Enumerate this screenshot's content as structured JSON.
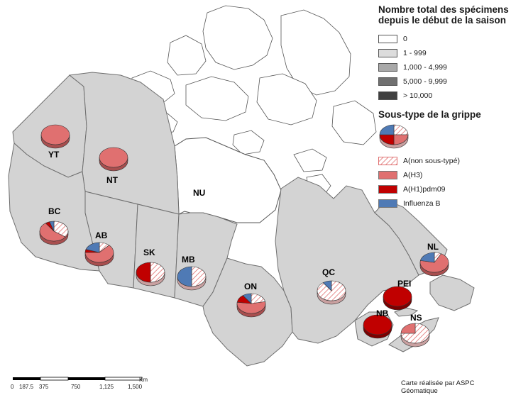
{
  "colors": {
    "land": "#d3d3d3",
    "nunavut": "#ffffff",
    "border": "#6e6e6e",
    "ah3": "#e07070",
    "ah1": "#c00000",
    "inflb": "#4f7ab5",
    "hatch": "#e07070"
  },
  "legend": {
    "total_title_1": "Nombre total des spécimens",
    "total_title_2": "depuis le début de la saison",
    "total_classes": [
      {
        "label": "0",
        "color": "#ffffff"
      },
      {
        "label": "1 - 999",
        "color": "#dcdcdc"
      },
      {
        "label": "1,000 - 4,999",
        "color": "#a8a8a8"
      },
      {
        "label": "5,000 - 9,999",
        "color": "#707070"
      },
      {
        "label": "> 10,000",
        "color": "#404040"
      }
    ],
    "subtype_title": "Sous-type de la grippe",
    "subtypes": [
      {
        "key": "a_nonsub",
        "label": "A(non sous-typé)"
      },
      {
        "key": "ah3",
        "label": "A(H3)"
      },
      {
        "key": "ah1",
        "label": "A(H1)pdm09"
      },
      {
        "key": "inflb",
        "label": "Influenza B"
      }
    ]
  },
  "regions": [
    {
      "code": "YT",
      "a_nonsub": 0,
      "ah3": 100,
      "ah1": 0,
      "inflb": 0
    },
    {
      "code": "NT",
      "a_nonsub": 0,
      "ah3": 100,
      "ah1": 0,
      "inflb": 0
    },
    {
      "code": "NU",
      "a_nonsub": 0,
      "ah3": 0,
      "ah1": 0,
      "inflb": 0
    },
    {
      "code": "BC",
      "a_nonsub": 35,
      "ah3": 55,
      "ah1": 5,
      "inflb": 5
    },
    {
      "code": "AB",
      "a_nonsub": 12,
      "ah3": 63,
      "ah1": 5,
      "inflb": 20
    },
    {
      "code": "SK",
      "a_nonsub": 50,
      "ah3": 0,
      "ah1": 50,
      "inflb": 0
    },
    {
      "code": "MB",
      "a_nonsub": 50,
      "ah3": 0,
      "ah1": 0,
      "inflb": 50
    },
    {
      "code": "ON",
      "a_nonsub": 22,
      "ah3": 55,
      "ah1": 13,
      "inflb": 10
    },
    {
      "code": "QC",
      "a_nonsub": 90,
      "ah3": 0,
      "ah1": 0,
      "inflb": 10
    },
    {
      "code": "NL",
      "a_nonsub": 8,
      "ah3": 70,
      "ah1": 0,
      "inflb": 22
    },
    {
      "code": "PEI",
      "a_nonsub": 0,
      "ah3": 0,
      "ah1": 100,
      "inflb": 0
    },
    {
      "code": "NB",
      "a_nonsub": 0,
      "ah3": 0,
      "ah1": 100,
      "inflb": 0
    },
    {
      "code": "NS",
      "a_nonsub": 75,
      "ah3": 25,
      "ah1": 0,
      "inflb": 0
    }
  ],
  "scale": {
    "ticks": [
      "0",
      "187.5",
      "375",
      "750",
      "1,125",
      "1,500"
    ],
    "unit": "Km"
  },
  "credit": "Carte réalisée par ASPC Géomatique"
}
